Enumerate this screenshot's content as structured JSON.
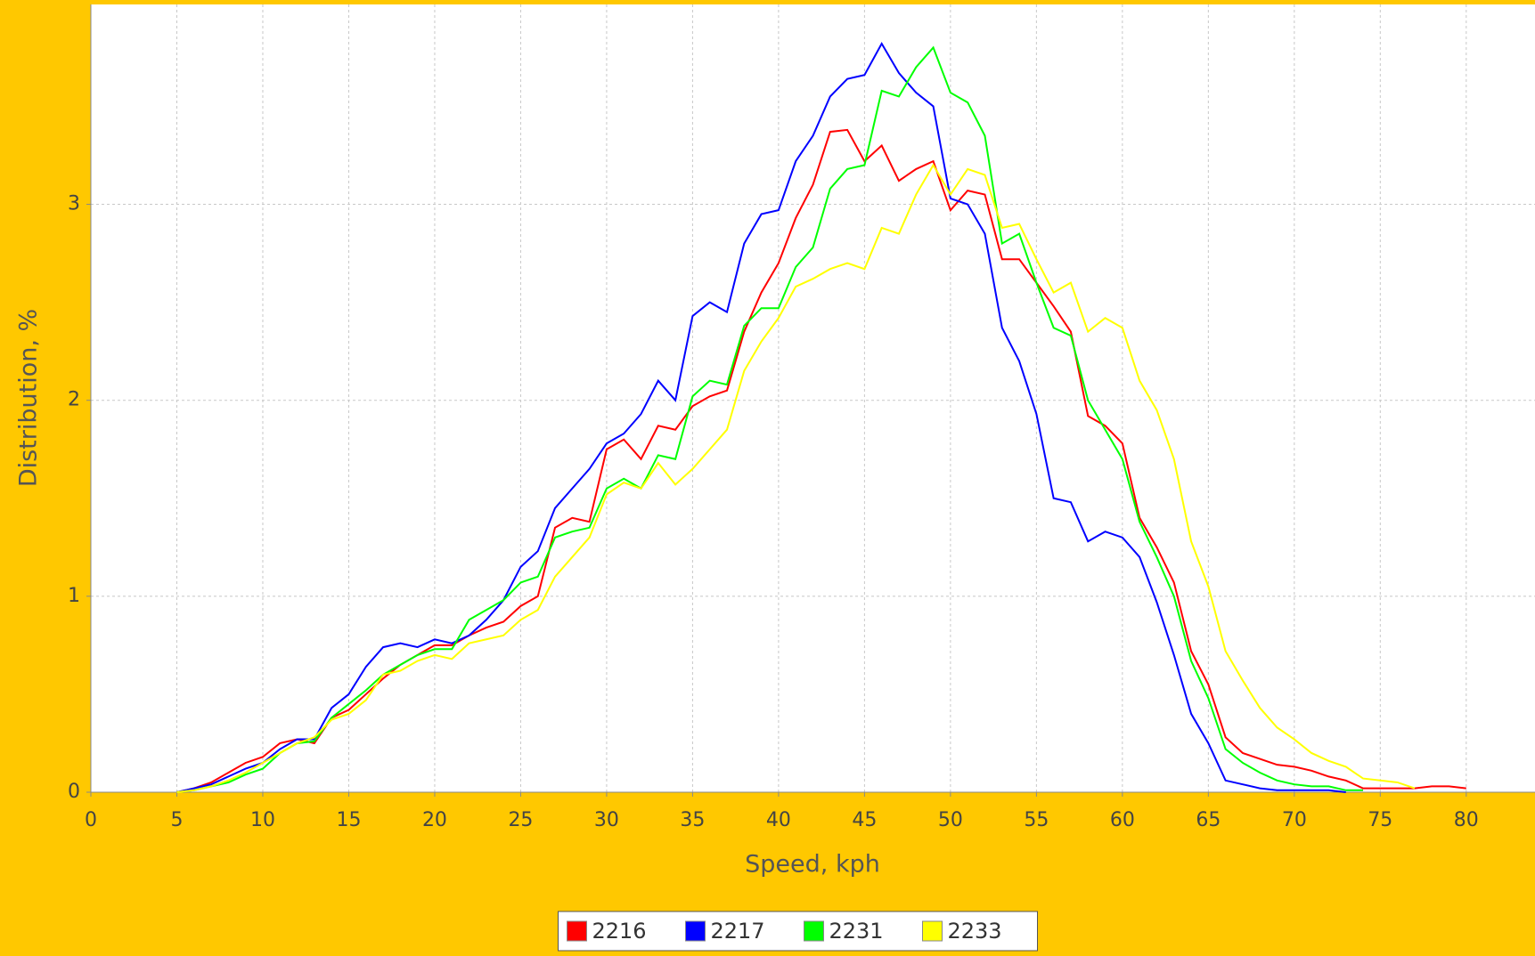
{
  "chart_data": {
    "type": "line",
    "x_label": "Speed, kph",
    "y_label": "Distribution, %",
    "xlim": [
      0,
      84
    ],
    "ylim": [
      0,
      4.02
    ],
    "xticks": [
      0,
      5,
      10,
      15,
      20,
      25,
      30,
      35,
      40,
      45,
      50,
      55,
      60,
      65,
      70,
      75,
      80
    ],
    "yticks": [
      0,
      1,
      2,
      3
    ],
    "grid": true,
    "legend": "bottom",
    "x": [
      5,
      6,
      7,
      8,
      9,
      10,
      11,
      12,
      13,
      14,
      15,
      16,
      17,
      18,
      19,
      20,
      21,
      22,
      23,
      24,
      25,
      26,
      27,
      28,
      29,
      30,
      31,
      32,
      33,
      34,
      35,
      36,
      37,
      38,
      39,
      40,
      41,
      42,
      43,
      44,
      45,
      46,
      47,
      48,
      49,
      50,
      51,
      52,
      53,
      54,
      55,
      56,
      57,
      58,
      59,
      60,
      61,
      62,
      63,
      64,
      65,
      66,
      67,
      68,
      69,
      70,
      71,
      72,
      73,
      74,
      75,
      76,
      77,
      78,
      79,
      80
    ],
    "series": [
      {
        "name": "2216",
        "color": "#ff0000",
        "values": [
          0,
          0.02,
          0.05,
          0.1,
          0.15,
          0.18,
          0.25,
          0.27,
          0.25,
          0.38,
          0.42,
          0.5,
          0.58,
          0.65,
          0.7,
          0.75,
          0.75,
          0.8,
          0.84,
          0.87,
          0.95,
          1.0,
          1.35,
          1.4,
          1.38,
          1.75,
          1.8,
          1.7,
          1.87,
          1.85,
          1.97,
          2.02,
          2.05,
          2.35,
          2.55,
          2.7,
          2.93,
          3.1,
          3.37,
          3.38,
          3.22,
          3.3,
          3.12,
          3.18,
          3.22,
          2.97,
          3.07,
          3.05,
          2.72,
          2.72,
          2.6,
          2.48,
          2.35,
          1.92,
          1.87,
          1.78,
          1.4,
          1.25,
          1.07,
          0.72,
          0.55,
          0.28,
          0.2,
          0.17,
          0.14,
          0.13,
          0.11,
          0.08,
          0.06,
          0.02,
          0.02,
          0.02,
          0.02,
          0.03,
          0.03,
          0.02
        ]
      },
      {
        "name": "2217",
        "color": "#0000ff",
        "values": [
          0,
          0.02,
          0.04,
          0.08,
          0.12,
          0.15,
          0.22,
          0.27,
          0.27,
          0.43,
          0.5,
          0.64,
          0.74,
          0.76,
          0.74,
          0.78,
          0.76,
          0.8,
          0.88,
          0.98,
          1.15,
          1.23,
          1.45,
          1.55,
          1.65,
          1.78,
          1.83,
          1.93,
          2.1,
          2.0,
          2.43,
          2.5,
          2.45,
          2.8,
          2.95,
          2.97,
          3.22,
          3.35,
          3.55,
          3.64,
          3.66,
          3.82,
          3.67,
          3.57,
          3.5,
          3.03,
          3.0,
          2.85,
          2.37,
          2.2,
          1.93,
          1.5,
          1.48,
          1.28,
          1.33,
          1.3,
          1.2,
          0.97,
          0.7,
          0.4,
          0.25,
          0.06,
          0.04,
          0.02,
          0.01,
          0.01,
          0.01,
          0.01,
          0,
          null,
          null,
          null,
          null,
          null,
          null,
          null
        ]
      },
      {
        "name": "2231",
        "color": "#00ff00",
        "values": [
          0,
          0.01,
          0.03,
          0.05,
          0.09,
          0.12,
          0.2,
          0.25,
          0.26,
          0.38,
          0.45,
          0.52,
          0.6,
          0.65,
          0.7,
          0.73,
          0.73,
          0.88,
          0.93,
          0.98,
          1.07,
          1.1,
          1.3,
          1.33,
          1.35,
          1.55,
          1.6,
          1.55,
          1.72,
          1.7,
          2.02,
          2.1,
          2.08,
          2.38,
          2.47,
          2.47,
          2.68,
          2.78,
          3.08,
          3.18,
          3.2,
          3.58,
          3.55,
          3.7,
          3.8,
          3.57,
          3.52,
          3.35,
          2.8,
          2.85,
          2.6,
          2.37,
          2.33,
          2.0,
          1.85,
          1.7,
          1.38,
          1.2,
          1.0,
          0.67,
          0.48,
          0.22,
          0.15,
          0.1,
          0.06,
          0.04,
          0.03,
          0.03,
          0.01,
          0.01,
          null,
          null,
          null,
          null,
          null,
          null
        ]
      },
      {
        "name": "2233",
        "color": "#ffff00",
        "values": [
          0,
          0.01,
          0.03,
          0.06,
          0.1,
          0.15,
          0.2,
          0.25,
          0.28,
          0.37,
          0.4,
          0.47,
          0.6,
          0.62,
          0.67,
          0.7,
          0.68,
          0.76,
          0.78,
          0.8,
          0.88,
          0.93,
          1.1,
          1.2,
          1.3,
          1.52,
          1.58,
          1.55,
          1.68,
          1.57,
          1.65,
          1.75,
          1.85,
          2.15,
          2.3,
          2.42,
          2.58,
          2.62,
          2.67,
          2.7,
          2.67,
          2.88,
          2.85,
          3.05,
          3.2,
          3.05,
          3.18,
          3.15,
          2.88,
          2.9,
          2.72,
          2.55,
          2.6,
          2.35,
          2.42,
          2.37,
          2.1,
          1.95,
          1.7,
          1.28,
          1.05,
          0.72,
          0.57,
          0.43,
          0.33,
          0.27,
          0.2,
          0.16,
          0.13,
          0.07,
          0.06,
          0.05,
          0.02,
          null,
          null,
          null
        ]
      }
    ]
  }
}
